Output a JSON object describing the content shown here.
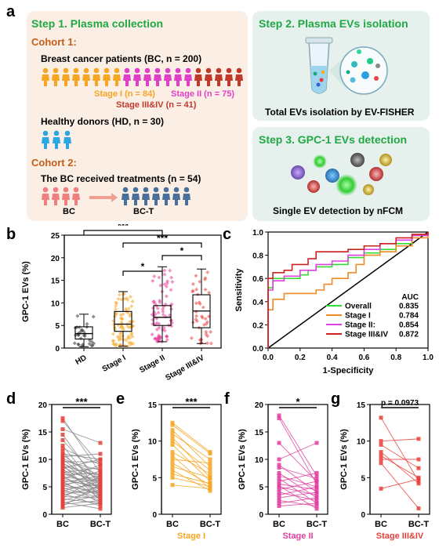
{
  "panel_a": {
    "letter": "a",
    "step1_title": "Step 1. Plasma collection",
    "cohort1_title": "Cohort 1:",
    "bc_label": "Breast cancer patients (BC, n = 200)",
    "stage1_label": "Stage I (n = 84)",
    "stage2_label": "Stage II (n = 75)",
    "stage34_label": "Stage III&IV (n = 41)",
    "hd_label": "Healthy donors (HD, n = 30)",
    "cohort2_title": "Cohort 2:",
    "treat_label": "The BC received treatments (n = 54)",
    "bc_short": "BC",
    "bct_short": "BC-T",
    "step2_title": "Step 2. Plasma EVs isolation",
    "step2_caption": "Total EVs isolation by EV-FISHER",
    "step3_title": "Step 3. GPC-1 EVs detection",
    "step3_caption": "Single EV detection by nFCM",
    "colors": {
      "stage1": "#f5a623",
      "stage2": "#e040c8",
      "stage34": "#c0392b",
      "hd": "#2aa7e0",
      "bc_pink": "#f08080",
      "bct_blue": "#4a6f9a",
      "step1_bg": "#fbeee4",
      "step_bg": "#e8f1ee"
    }
  },
  "chart_data": [
    {
      "panel": "b",
      "type": "box",
      "ylabel": "GPC-1 EVs (%)",
      "ylim": [
        0,
        25
      ],
      "yticks": [
        0,
        5,
        10,
        15,
        20,
        25
      ],
      "categories": [
        "HD",
        "Stage I",
        "Stage II",
        "Stage III&IV"
      ],
      "colors": [
        "#333333",
        "#f5a623",
        "#e63c9b",
        "#e8413c"
      ],
      "boxes": [
        {
          "q1": 2.0,
          "median": 3.2,
          "q3": 4.7,
          "min": 0.3,
          "max": 7.5
        },
        {
          "q1": 3.7,
          "median": 5.3,
          "q3": 8.1,
          "min": 0.4,
          "max": 12.5
        },
        {
          "q1": 5.0,
          "median": 6.8,
          "q3": 9.4,
          "min": 1.4,
          "max": 18.0
        },
        {
          "q1": 4.5,
          "median": 8.2,
          "q3": 11.8,
          "min": 1.0,
          "max": 17.5
        }
      ],
      "significance": [
        {
          "from": 0,
          "to": 2,
          "label": "***"
        },
        {
          "from": 1,
          "to": 3,
          "label": "***"
        },
        {
          "from": 2,
          "to": 3,
          "label": "*"
        },
        {
          "from": 1,
          "to": 2,
          "label": "*"
        }
      ]
    },
    {
      "panel": "c",
      "type": "line",
      "xlabel": "1-Specificity",
      "ylabel": "Sensitivity",
      "xlim": [
        0,
        1
      ],
      "ylim": [
        0,
        1
      ],
      "ticks": [
        "0.0",
        "0.2",
        "0.4",
        "0.6",
        "0.8",
        "1.0"
      ],
      "legend_title": "AUC",
      "legend_placement": "bottom-right",
      "series": [
        {
          "name": "Overall",
          "auc": "0.835",
          "color": "#33dd33",
          "x": [
            0,
            0,
            0.03,
            0.1,
            0.2,
            0.25,
            0.3,
            0.4,
            0.5,
            0.6,
            0.7,
            0.8,
            0.9,
            1.0
          ],
          "y": [
            0,
            0.52,
            0.6,
            0.6,
            0.63,
            0.67,
            0.7,
            0.72,
            0.78,
            0.82,
            0.85,
            0.9,
            0.97,
            1.0
          ]
        },
        {
          "name": "Stage I",
          "auc": "0.784",
          "color": "#f08a24",
          "x": [
            0,
            0,
            0.03,
            0.1,
            0.2,
            0.3,
            0.35,
            0.4,
            0.5,
            0.55,
            0.6,
            0.7,
            0.8,
            0.9,
            1.0
          ],
          "y": [
            0,
            0.33,
            0.42,
            0.47,
            0.47,
            0.5,
            0.55,
            0.6,
            0.65,
            0.72,
            0.8,
            0.83,
            0.88,
            0.95,
            1.0
          ]
        },
        {
          "name": "Stage II:",
          "auc": "0.854",
          "color": "#e040e0",
          "x": [
            0,
            0,
            0.03,
            0.1,
            0.2,
            0.3,
            0.4,
            0.5,
            0.6,
            0.7,
            0.8,
            0.9,
            1.0
          ],
          "y": [
            0,
            0.5,
            0.58,
            0.62,
            0.67,
            0.72,
            0.75,
            0.8,
            0.85,
            0.9,
            0.93,
            0.97,
            1.0
          ]
        },
        {
          "name": "Stage III&IV",
          "auc": "0.872",
          "color": "#cc2222",
          "x": [
            0,
            0,
            0.03,
            0.1,
            0.15,
            0.25,
            0.3,
            0.4,
            0.5,
            0.6,
            0.7,
            0.8,
            0.9,
            1.0
          ],
          "y": [
            0,
            0.6,
            0.65,
            0.67,
            0.72,
            0.77,
            0.83,
            0.83,
            0.85,
            0.88,
            0.9,
            0.95,
            0.98,
            1.0
          ]
        }
      ]
    },
    {
      "panel": "d",
      "type": "line",
      "title": "",
      "pval": "***",
      "ylabel": "GPC-1 EVs (%)",
      "ylim": [
        0,
        20
      ],
      "yticks": [
        0,
        5,
        10,
        15,
        20
      ],
      "categories": [
        "BC",
        "BC-T"
      ],
      "line_color": "#888888",
      "point_color": "#e8413c",
      "pairs": [
        [
          17.5,
          7.5
        ],
        [
          17,
          9
        ],
        [
          15.5,
          13
        ],
        [
          14.5,
          5
        ],
        [
          13.5,
          6
        ],
        [
          12.5,
          4
        ],
        [
          12,
          9
        ],
        [
          11.5,
          3
        ],
        [
          11,
          10
        ],
        [
          10.8,
          6
        ],
        [
          10.5,
          11
        ],
        [
          10.2,
          7
        ],
        [
          10,
          5
        ],
        [
          9.8,
          8
        ],
        [
          9.6,
          9.5
        ],
        [
          9.4,
          4.5
        ],
        [
          9.2,
          6.5
        ],
        [
          9,
          2.5
        ],
        [
          8.8,
          7
        ],
        [
          8.6,
          5.5
        ],
        [
          8.4,
          10
        ],
        [
          8.2,
          3.5
        ],
        [
          8,
          6
        ],
        [
          7.8,
          4
        ],
        [
          7.6,
          8.5
        ],
        [
          7.4,
          5
        ],
        [
          7.2,
          7.5
        ],
        [
          7,
          3
        ],
        [
          6.8,
          6
        ],
        [
          6.6,
          4.5
        ],
        [
          6.4,
          9
        ],
        [
          6.2,
          5
        ],
        [
          6,
          2
        ],
        [
          5.8,
          7
        ],
        [
          5.6,
          3.5
        ],
        [
          5.4,
          6.5
        ],
        [
          5.2,
          4
        ],
        [
          5,
          8
        ],
        [
          4.8,
          3
        ],
        [
          4.6,
          5.5
        ],
        [
          4.4,
          2.5
        ],
        [
          4.2,
          6
        ],
        [
          4,
          4
        ],
        [
          3.8,
          1.5
        ],
        [
          3.5,
          5
        ],
        [
          3.2,
          3
        ],
        [
          3,
          7
        ],
        [
          2.8,
          2
        ],
        [
          2.5,
          4.5
        ],
        [
          2.2,
          1
        ],
        [
          2,
          3.5
        ],
        [
          1.8,
          2.5
        ],
        [
          1.5,
          5.5
        ],
        [
          1.2,
          2
        ]
      ]
    },
    {
      "panel": "e",
      "type": "line",
      "title": "Stage I",
      "pval": "***",
      "ylabel": "GPC-1 EVs (%)",
      "ylim": [
        0,
        15
      ],
      "yticks": [
        0,
        5,
        10,
        15
      ],
      "categories": [
        "BC",
        "BC-T"
      ],
      "line_color": "#f5a623",
      "point_color": "#f5a623",
      "pairs": [
        [
          12.5,
          8.5
        ],
        [
          12.2,
          8.3
        ],
        [
          11.5,
          6.5
        ],
        [
          11,
          7.5
        ],
        [
          10.5,
          5
        ],
        [
          10,
          6
        ],
        [
          9.5,
          4.5
        ],
        [
          8.5,
          5.5
        ],
        [
          8,
          3.5
        ],
        [
          7.5,
          7
        ],
        [
          7,
          4
        ],
        [
          6.5,
          5
        ],
        [
          6,
          3.2
        ],
        [
          5.5,
          4.2
        ],
        [
          5,
          3.8
        ],
        [
          4,
          3.5
        ]
      ]
    },
    {
      "panel": "f",
      "type": "line",
      "title": "Stage II",
      "pval": "*",
      "ylabel": "GPC-1 EVs (%)",
      "ylim": [
        0,
        20
      ],
      "yticks": [
        0,
        5,
        10,
        15,
        20
      ],
      "categories": [
        "BC",
        "BC-T"
      ],
      "line_color": "#e040a0",
      "point_color": "#e040a0",
      "pairs": [
        [
          18,
          7
        ],
        [
          17.5,
          5.5
        ],
        [
          13,
          6
        ],
        [
          10,
          13
        ],
        [
          9,
          4
        ],
        [
          8.5,
          6.5
        ],
        [
          7.5,
          3
        ],
        [
          7,
          5
        ],
        [
          6.5,
          2
        ],
        [
          6,
          7.5
        ],
        [
          5.5,
          4.5
        ],
        [
          5.2,
          1
        ],
        [
          5,
          3.5
        ],
        [
          4.5,
          6
        ],
        [
          4,
          2.5
        ],
        [
          3.5,
          5
        ],
        [
          3,
          4
        ],
        [
          2.5,
          1.5
        ],
        [
          2,
          3
        ],
        [
          1.5,
          2
        ]
      ]
    },
    {
      "panel": "g",
      "type": "line",
      "title": "Stage III&IV",
      "pval": "p = 0.0973",
      "ylabel": "GPC-1 EVs (%)",
      "ylim": [
        0,
        15
      ],
      "yticks": [
        0,
        5,
        10,
        15
      ],
      "categories": [
        "BC",
        "BC-T"
      ],
      "line_color": "#e8413c",
      "point_color": "#e8413c",
      "pairs": [
        [
          13.2,
          4.5
        ],
        [
          10,
          10.3
        ],
        [
          9.5,
          6.3
        ],
        [
          8.5,
          4.2
        ],
        [
          8,
          5
        ],
        [
          7.5,
          7.5
        ],
        [
          7,
          0.8
        ],
        [
          3.5,
          4.8
        ]
      ]
    }
  ],
  "letters": {
    "b": "b",
    "c": "c",
    "d": "d",
    "e": "e",
    "f": "f",
    "g": "g"
  }
}
